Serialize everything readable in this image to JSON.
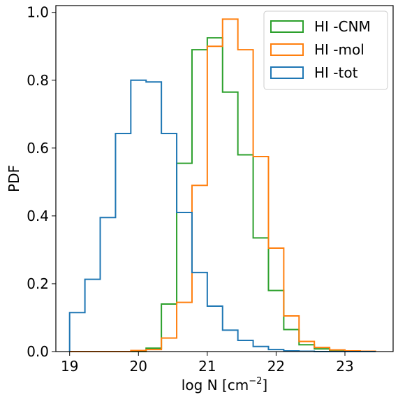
{
  "chart_data": {
    "type": "histogram",
    "xlabel_base": "log N [cm",
    "xlabel_exp": "−2",
    "xlabel_close": "]",
    "ylabel": "PDF",
    "xlim": [
      18.8,
      23.7
    ],
    "ylim": [
      0,
      1.02
    ],
    "xticks": [
      "19",
      "20",
      "21",
      "22",
      "23"
    ],
    "yticks": [
      "0.0",
      "0.2",
      "0.4",
      "0.6",
      "0.8",
      "1.0"
    ],
    "bin_edges": [
      19.0,
      19.2222,
      19.4444,
      19.6667,
      19.8889,
      20.1111,
      20.3333,
      20.5556,
      20.7778,
      21.0,
      21.2222,
      21.4444,
      21.6667,
      21.8889,
      22.1111,
      22.3333,
      22.5556,
      22.7778,
      23.0,
      23.2222,
      23.4444
    ],
    "legend_position": "upper right",
    "series": [
      {
        "name": "HI -CNM",
        "color": "#2ca02c",
        "values": [
          0.0,
          0.0,
          0.0,
          0.0,
          0.0,
          0.01,
          0.14,
          0.555,
          0.89,
          0.925,
          0.765,
          0.58,
          0.335,
          0.18,
          0.065,
          0.02,
          0.008,
          0.003,
          0.001,
          0.0
        ]
      },
      {
        "name": "HI -mol",
        "color": "#ff7f0e",
        "values": [
          0.0,
          0.0,
          0.0,
          0.0,
          0.003,
          0.006,
          0.04,
          0.145,
          0.49,
          0.9,
          0.98,
          0.89,
          0.575,
          0.305,
          0.105,
          0.03,
          0.012,
          0.005,
          0.002,
          0.001
        ]
      },
      {
        "name": "HI -tot",
        "color": "#1f77b4",
        "values": [
          0.115,
          0.213,
          0.395,
          0.643,
          0.8,
          0.795,
          0.643,
          0.41,
          0.233,
          0.134,
          0.063,
          0.033,
          0.015,
          0.006,
          0.002,
          0.001,
          0.0,
          0.0,
          0.0,
          0.0
        ]
      }
    ]
  }
}
